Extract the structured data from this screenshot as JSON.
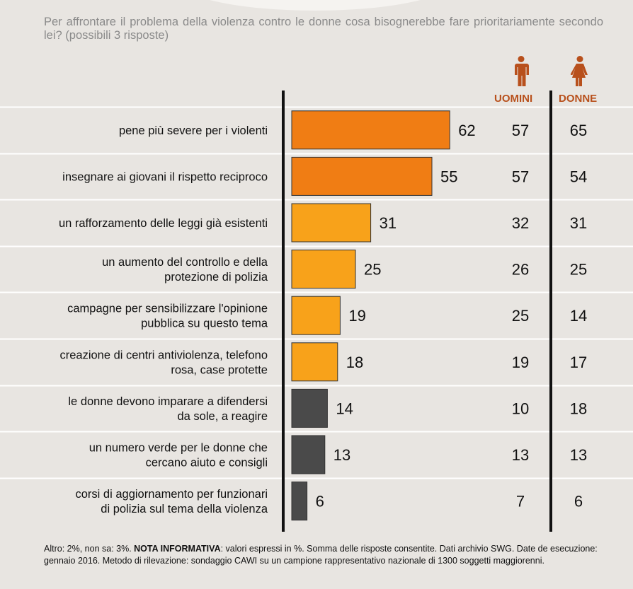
{
  "question": "Per affrontare il problema della violenza contro le donne cosa bisognerebbe fare prioritariamente secondo lei? (possibili 3 risposte)",
  "columns": {
    "men": "UOMINI",
    "women": "DONNE"
  },
  "icons": {
    "men": "man-icon",
    "women": "woman-icon"
  },
  "colors": {
    "top": "#f07d14",
    "mid": "#f8a21a",
    "dark": "#4a4a4a",
    "accent": "#b8501c",
    "background": "#e8e5e1"
  },
  "chart_data": {
    "type": "bar",
    "orientation": "horizontal",
    "unit": "%",
    "categories": [
      [
        "pene più severe per i violenti"
      ],
      [
        "insegnare ai giovani il rispetto reciproco"
      ],
      [
        "un rafforzamento delle leggi già esistenti"
      ],
      [
        "un aumento del controllo e della",
        "protezione di polizia"
      ],
      [
        "campagne per sensibilizzare l'opinione",
        "pubblica su questo tema"
      ],
      [
        "creazione di centri antiviolenza, telefono",
        "rosa, case protette"
      ],
      [
        "le donne devono imparare a difendersi",
        "da sole, a reagire"
      ],
      [
        "un numero verde per le donne che",
        "cercano aiuto e consigli"
      ],
      [
        "corsi di aggiornamento per funzionari",
        "di polizia sul tema della violenza"
      ]
    ],
    "values": [
      62,
      55,
      31,
      25,
      19,
      18,
      14,
      13,
      6
    ],
    "men": [
      57,
      57,
      32,
      26,
      25,
      19,
      10,
      13,
      7
    ],
    "women": [
      65,
      54,
      31,
      25,
      14,
      17,
      18,
      13,
      6
    ],
    "bar_color_group": [
      "top",
      "top",
      "mid",
      "mid",
      "mid",
      "mid",
      "dark",
      "dark",
      "dark"
    ]
  },
  "footnote": {
    "pre": "Altro: 2%, non sa: 3%. ",
    "bold": "NOTA INFORMATIVA",
    "post": ": valori espressi in %. Somma delle risposte consentite. Dati archivio SWG. Date de esecuzione: gennaio 2016. Metodo di rilevazione: sondaggio CAWI su un campione rappresentativo nazionale di 1300 soggetti maggiorenni."
  }
}
